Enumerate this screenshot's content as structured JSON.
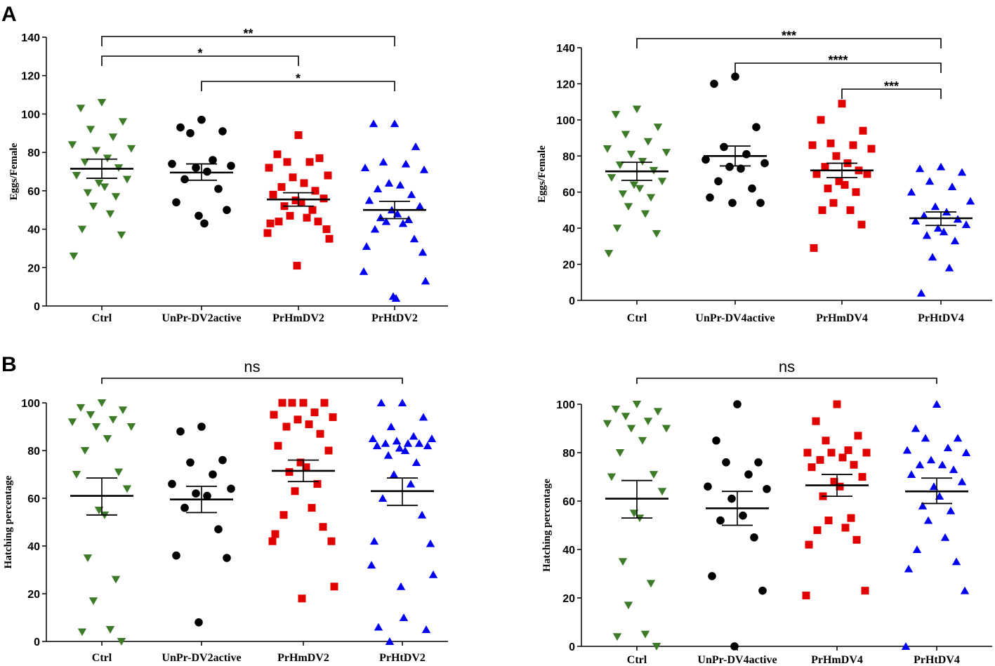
{
  "colors": {
    "Ctrl": "#3d7b29",
    "UnPr": "#000000",
    "PrHm": "#e00000",
    "PrHt": "#0000f0"
  },
  "chart_data": [
    {
      "id": "A1",
      "panel_letter": "A",
      "type": "scatter",
      "ylabel": "Eggs/Female",
      "ylim": [
        0,
        140
      ],
      "yticks": [
        "0",
        "20",
        "40",
        "60",
        "80",
        "100",
        "120",
        "140"
      ],
      "categories": [
        "Ctrl",
        "UnPr-DV2active",
        "PrHmDV2",
        "PrHtDV2"
      ],
      "series": [
        {
          "name": "Ctrl",
          "marker": "triangle-down",
          "color_key": "Ctrl",
          "values": [
            106,
            103,
            96,
            92,
            88,
            84,
            82,
            81,
            77,
            75,
            72,
            68,
            66,
            64,
            62,
            59,
            57,
            52,
            48,
            40,
            37,
            26
          ],
          "mean": 71.5,
          "sem_low": 66.5,
          "sem_high": 76.5
        },
        {
          "name": "UnPr-DV2active",
          "marker": "circle",
          "color_key": "UnPr",
          "values": [
            97,
            93,
            91,
            90,
            76,
            74,
            73,
            72,
            70,
            66,
            61,
            54,
            50,
            47,
            43
          ],
          "mean": 69.5,
          "sem_low": 65.5,
          "sem_high": 74
        },
        {
          "name": "PrHmDV2",
          "marker": "square",
          "color_key": "PrHm",
          "values": [
            89,
            79,
            77,
            75,
            75,
            72,
            68,
            67,
            64,
            62,
            60,
            58,
            56,
            55,
            54,
            52,
            50,
            47,
            46,
            44,
            44,
            43,
            40,
            38,
            35,
            21
          ],
          "mean": 55.5,
          "sem_low": 52,
          "sem_high": 59
        },
        {
          "name": "PrHtDV2",
          "marker": "triangle-up",
          "color_key": "PrHt",
          "values": [
            95,
            95,
            83,
            75,
            74,
            72,
            71,
            64,
            63,
            61,
            58,
            55,
            52,
            50,
            48,
            46,
            45,
            44,
            43,
            40,
            35,
            31,
            28,
            18,
            13,
            5,
            4
          ],
          "mean": 50,
          "sem_low": 45.5,
          "sem_high": 54.5
        }
      ],
      "comparisons": [
        {
          "from": 0,
          "to": 3,
          "label": "**",
          "level": 0
        },
        {
          "from": 0,
          "to": 2,
          "label": "*",
          "level": 1
        },
        {
          "from": 1,
          "to": 3,
          "label": "*",
          "level": 2
        }
      ]
    },
    {
      "id": "A2",
      "panel_letter": "",
      "type": "scatter",
      "ylabel": "Eggs/Female",
      "ylim": [
        0,
        140
      ],
      "yticks": [
        "0",
        "20",
        "40",
        "60",
        "80",
        "100",
        "120",
        "140"
      ],
      "categories": [
        "Ctrl",
        "UnPr-DV4active",
        "PrHmDV4",
        "PrHtDV4"
      ],
      "series": [
        {
          "name": "Ctrl",
          "marker": "triangle-down",
          "color_key": "Ctrl",
          "values": [
            106,
            103,
            96,
            92,
            88,
            84,
            82,
            81,
            77,
            75,
            72,
            68,
            66,
            64,
            62,
            59,
            57,
            52,
            48,
            40,
            37,
            26
          ],
          "mean": 71.5,
          "sem_low": 66.5,
          "sem_high": 76.5
        },
        {
          "name": "UnPr-DV4active",
          "marker": "circle",
          "color_key": "UnPr",
          "values": [
            124,
            120,
            96,
            85,
            81,
            78,
            76,
            74,
            73,
            66,
            62,
            57,
            54,
            54
          ],
          "mean": 80,
          "sem_low": 74.5,
          "sem_high": 85.5
        },
        {
          "name": "PrHmDV4",
          "marker": "square",
          "color_key": "PrHm",
          "values": [
            109,
            100,
            94,
            87,
            86,
            86,
            84,
            80,
            76,
            74,
            72,
            70,
            70,
            66,
            64,
            62,
            60,
            54,
            50,
            50,
            42,
            29
          ],
          "mean": 72,
          "sem_low": 68,
          "sem_high": 76
        },
        {
          "name": "PrHtDV4",
          "marker": "triangle-up",
          "color_key": "PrHt",
          "values": [
            74,
            73,
            71,
            66,
            63,
            60,
            55,
            52,
            49,
            47,
            45,
            44,
            42,
            40,
            38,
            36,
            33,
            24,
            18,
            4
          ],
          "mean": 45.5,
          "sem_low": 41.5,
          "sem_high": 49
        }
      ],
      "comparisons": [
        {
          "from": 0,
          "to": 3,
          "label": "***",
          "level": 0
        },
        {
          "from": 1,
          "to": 3,
          "label": "****",
          "level": 1
        },
        {
          "from": 2,
          "to": 3,
          "label": "***",
          "level": 2
        }
      ]
    },
    {
      "id": "B1",
      "panel_letter": "B",
      "type": "scatter",
      "ylabel": "Hatching percentage",
      "ylim": [
        0,
        100
      ],
      "yticks": [
        "0",
        "20",
        "40",
        "60",
        "80",
        "100"
      ],
      "categories": [
        "Ctrl",
        "UnPr-DV2active",
        "PrHmDV2",
        "PrHtDV2"
      ],
      "series": [
        {
          "name": "Ctrl",
          "marker": "triangle-down",
          "color_key": "Ctrl",
          "values": [
            100,
            98,
            97,
            95,
            93,
            92,
            90,
            90,
            85,
            80,
            71,
            70,
            64,
            55,
            53,
            35,
            26,
            17,
            5,
            4,
            0
          ],
          "mean": 61,
          "sem_low": 53,
          "sem_high": 68.5
        },
        {
          "name": "UnPr-DV2active",
          "marker": "circle",
          "color_key": "UnPr",
          "values": [
            90,
            88,
            76,
            75,
            70,
            66,
            64,
            62,
            61,
            56,
            47,
            36,
            35,
            8
          ],
          "mean": 59.5,
          "sem_low": 54,
          "sem_high": 65
        },
        {
          "name": "PrHmDV2",
          "marker": "square",
          "color_key": "PrHm",
          "values": [
            100,
            100,
            100,
            100,
            96,
            95,
            94,
            93,
            91,
            90,
            87,
            82,
            80,
            75,
            73,
            71,
            66,
            63,
            56,
            53,
            48,
            45,
            42,
            42,
            23,
            18
          ],
          "mean": 71.5,
          "sem_low": 67,
          "sem_high": 76
        },
        {
          "name": "PrHtDV2",
          "marker": "triangle-up",
          "color_key": "PrHt",
          "values": [
            100,
            100,
            94,
            90,
            86,
            85,
            85,
            84,
            83,
            83,
            83,
            82,
            82,
            81,
            80,
            78,
            75,
            70,
            66,
            60,
            53,
            42,
            41,
            32,
            28,
            23,
            10,
            6,
            5,
            0
          ],
          "mean": 63,
          "sem_low": 57,
          "sem_high": 68.5
        }
      ],
      "comparisons": [
        {
          "from": 0,
          "to": 3,
          "label": "ns",
          "level": 0
        }
      ]
    },
    {
      "id": "B2",
      "panel_letter": "",
      "type": "scatter",
      "ylabel": "Hatching percentage",
      "ylim": [
        0,
        100
      ],
      "yticks": [
        "0",
        "20",
        "40",
        "60",
        "80",
        "100"
      ],
      "categories": [
        "Ctrl",
        "UnPr-DV4active",
        "PrHmDV4",
        "PrHtDV4"
      ],
      "series": [
        {
          "name": "Ctrl",
          "marker": "triangle-down",
          "color_key": "Ctrl",
          "values": [
            100,
            98,
            97,
            95,
            93,
            92,
            90,
            90,
            85,
            80,
            71,
            70,
            64,
            55,
            53,
            35,
            26,
            17,
            5,
            4,
            0
          ],
          "mean": 61,
          "sem_low": 53,
          "sem_high": 68.5
        },
        {
          "name": "UnPr-DV4active",
          "marker": "circle",
          "color_key": "UnPr",
          "values": [
            100,
            85,
            76,
            76,
            71,
            66,
            65,
            61,
            54,
            52,
            45,
            29,
            23,
            0
          ],
          "mean": 57,
          "sem_low": 50,
          "sem_high": 64
        },
        {
          "name": "PrHmDV4",
          "marker": "square",
          "color_key": "PrHm",
          "values": [
            100,
            93,
            87,
            85,
            81,
            80,
            80,
            80,
            78,
            77,
            75,
            74,
            70,
            68,
            66,
            62,
            53,
            52,
            49,
            48,
            44,
            42,
            23,
            21
          ],
          "mean": 66.5,
          "sem_low": 62,
          "sem_high": 71
        },
        {
          "name": "PrHtDV4",
          "marker": "triangle-up",
          "color_key": "PrHt",
          "values": [
            100,
            90,
            86,
            86,
            82,
            81,
            80,
            77,
            75,
            75,
            73,
            71,
            68,
            66,
            62,
            58,
            56,
            52,
            45,
            40,
            35,
            32,
            23,
            0
          ],
          "mean": 64,
          "sem_low": 59,
          "sem_high": 69.5
        }
      ],
      "comparisons": [
        {
          "from": 0,
          "to": 3,
          "label": "ns",
          "level": 0
        }
      ]
    }
  ]
}
